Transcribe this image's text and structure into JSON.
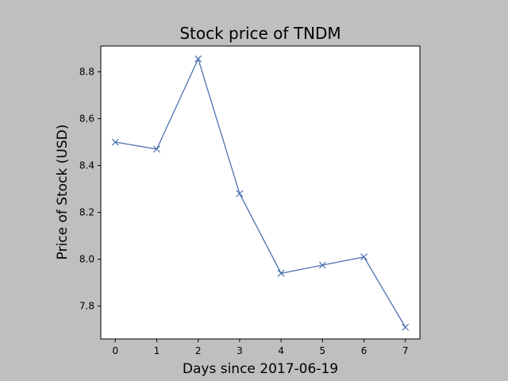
{
  "chart_data": {
    "type": "line",
    "title": "Stock price of TNDM",
    "xlabel": "Days since 2017-06-19",
    "ylabel": "Price of Stock (USD)",
    "x": [
      0,
      1,
      2,
      3,
      4,
      5,
      6,
      7
    ],
    "series": [
      {
        "values": [
          8.5,
          8.47,
          8.855,
          8.28,
          7.94,
          7.975,
          8.01,
          7.71
        ]
      }
    ],
    "xticks": [
      "0",
      "1",
      "2",
      "3",
      "4",
      "5",
      "6",
      "7"
    ],
    "yticks": [
      "7.8",
      "8.0",
      "8.2",
      "8.4",
      "8.6",
      "8.8"
    ],
    "xlim": [
      -0.35,
      7.35
    ],
    "ylim": [
      7.66,
      8.91
    ],
    "grid": false,
    "marker": "x",
    "colors": {
      "line": "#4c72b0",
      "figure_background": "#bfbfbf",
      "axes_background": "#ffffff"
    }
  }
}
